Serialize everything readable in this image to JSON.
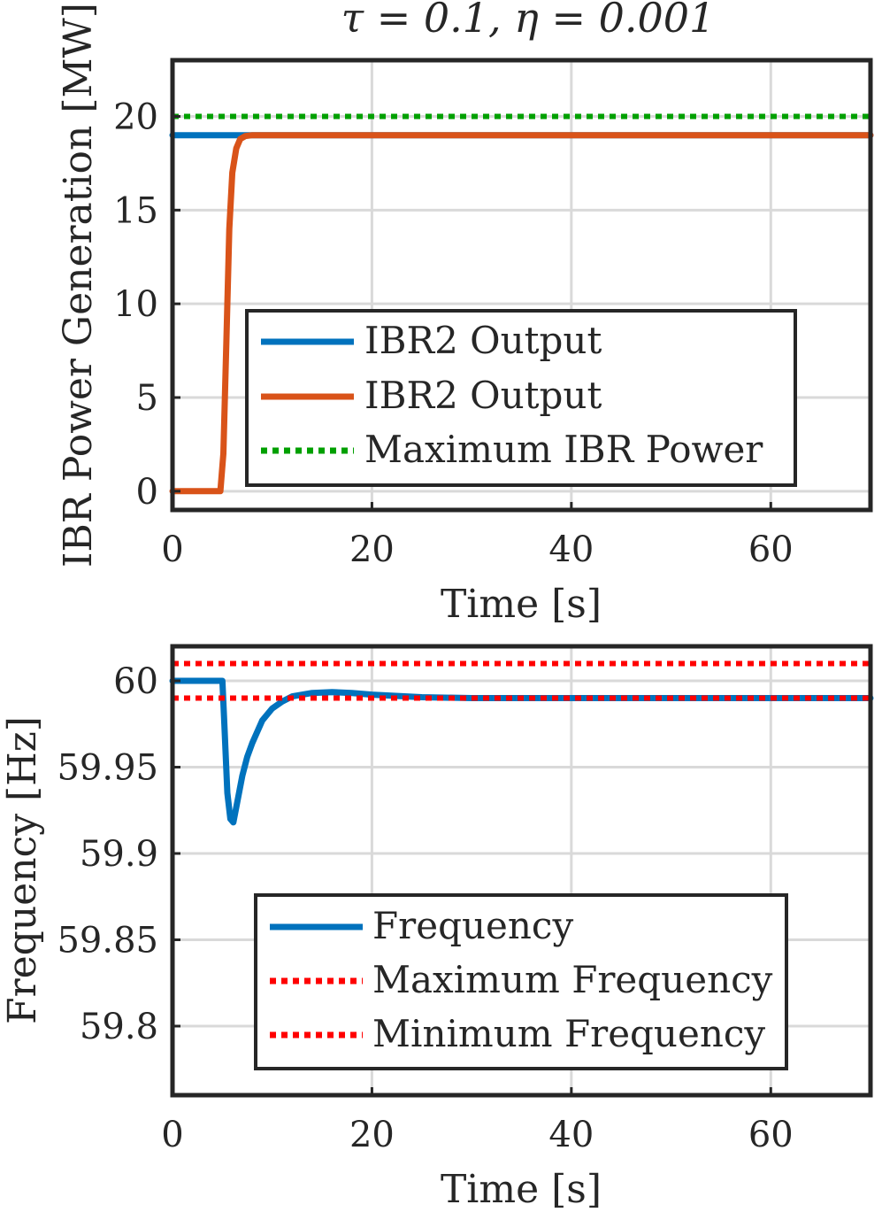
{
  "chart_data": [
    {
      "type": "line",
      "title": "τ = 0.1,  η = 0.001",
      "xlabel": "Time [s]",
      "ylabel": "IBR Power Generation [MW]",
      "xlim": [
        0,
        70
      ],
      "ylim": [
        -1,
        23
      ],
      "xticks": [
        "0",
        "20",
        "40",
        "60"
      ],
      "yticks": [
        "0",
        "5",
        "10",
        "15",
        "20"
      ],
      "grid": true,
      "legend_position": "center-right",
      "series": [
        {
          "name": "IBR2 Output",
          "color": "#0072BD",
          "style": "solid",
          "x": [
            0,
            5,
            5.3,
            5.6,
            5.9,
            6.2,
            6.6,
            7,
            7.5,
            8,
            10,
            70
          ],
          "y": [
            19,
            19,
            19,
            19,
            19,
            19,
            19,
            19,
            19,
            19,
            19,
            19
          ]
        },
        {
          "name": "IBR2 Output",
          "color": "#D95319",
          "style": "solid",
          "x": [
            0,
            4.8,
            5.1,
            5.4,
            5.7,
            6.0,
            6.4,
            6.8,
            7.3,
            8,
            10,
            70
          ],
          "y": [
            0,
            0,
            2,
            8,
            14,
            17,
            18.3,
            18.8,
            18.95,
            19,
            19,
            19
          ]
        },
        {
          "name": "Maximum IBR Power",
          "color": "#00A000",
          "style": "dotted",
          "x": [
            0,
            70
          ],
          "y": [
            20,
            20
          ]
        }
      ]
    },
    {
      "type": "line",
      "title": "",
      "xlabel": "Time [s]",
      "ylabel": "Frequency [Hz]",
      "xlim": [
        0,
        70
      ],
      "ylim": [
        59.76,
        60.02
      ],
      "xticks": [
        "0",
        "20",
        "40",
        "60"
      ],
      "yticks": [
        "59.8",
        "59.85",
        "59.9",
        "59.95",
        "60"
      ],
      "grid": true,
      "legend_position": "bottom-center",
      "series": [
        {
          "name": "Frequency",
          "color": "#0072BD",
          "style": "solid",
          "x": [
            0,
            5,
            5.2,
            5.5,
            5.8,
            6.1,
            6.5,
            7,
            7.5,
            8,
            9,
            10,
            11,
            12,
            14,
            16,
            18,
            20,
            25,
            30,
            40,
            50,
            60,
            70
          ],
          "y": [
            60,
            60,
            59.975,
            59.935,
            59.92,
            59.918,
            59.93,
            59.945,
            59.956,
            59.964,
            59.977,
            59.984,
            59.988,
            59.991,
            59.993,
            59.9935,
            59.993,
            59.992,
            59.9905,
            59.99,
            59.99,
            59.99,
            59.99,
            59.99
          ]
        },
        {
          "name": "Maximum Frequency",
          "color": "#FF0000",
          "style": "dotted",
          "x": [
            0,
            70
          ],
          "y": [
            60.01,
            60.01
          ]
        },
        {
          "name": "Minimum Frequency",
          "color": "#FF0000",
          "style": "dotted",
          "x": [
            0,
            70
          ],
          "y": [
            59.99,
            59.99
          ]
        }
      ]
    }
  ]
}
